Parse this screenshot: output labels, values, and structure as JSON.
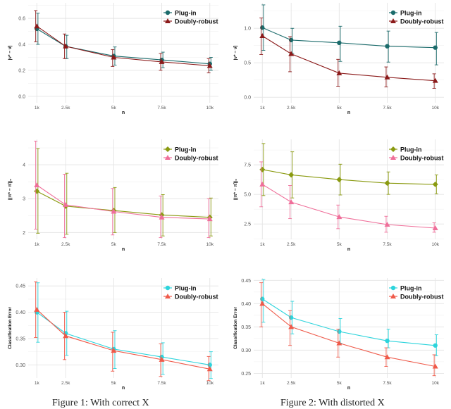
{
  "captions": {
    "left": "Figure 1: With correct X",
    "right": "Figure 2: With distorted X"
  },
  "chart_data": [
    {
      "type": "line",
      "xlabel": "n",
      "ylabel": "|ν* − ν̂|",
      "x": [
        1,
        2.5,
        5,
        7.5,
        10
      ],
      "categories": [
        "1k",
        "2.5k",
        "5k",
        "7.5k",
        "10k"
      ],
      "ylim": [
        -0.05,
        0.72
      ],
      "yticks": [
        0.0,
        0.2,
        0.4,
        0.6
      ],
      "ytick_labels": [
        "0.0",
        "0.2",
        "0.4",
        "0.6"
      ],
      "legend": "top-right",
      "series": [
        {
          "name": "Plug-in",
          "color": "#1b6b6b",
          "marker": "circle",
          "values": [
            0.52,
            0.385,
            0.31,
            0.28,
            0.25
          ],
          "lower": [
            0.4,
            0.29,
            0.24,
            0.22,
            0.2
          ],
          "upper": [
            0.64,
            0.47,
            0.38,
            0.34,
            0.3
          ]
        },
        {
          "name": "Doubly-robust",
          "color": "#8b1a1a",
          "marker": "triangle",
          "values": [
            0.54,
            0.385,
            0.3,
            0.265,
            0.235
          ],
          "lower": [
            0.42,
            0.29,
            0.23,
            0.2,
            0.18
          ],
          "upper": [
            0.66,
            0.48,
            0.36,
            0.33,
            0.29
          ]
        }
      ]
    },
    {
      "type": "line",
      "xlabel": "n",
      "ylabel": "|ν* − ν̂|",
      "x": [
        1,
        2.5,
        5,
        7.5,
        10
      ],
      "categories": [
        "1k",
        "2.5k",
        "5k",
        "7.5k",
        "10k"
      ],
      "ylim": [
        -0.08,
        1.37
      ],
      "yticks": [
        0.0,
        0.5,
        1.0
      ],
      "ytick_labels": [
        "0.0",
        "0.5",
        "1.0"
      ],
      "legend": "top-right",
      "series": [
        {
          "name": "Plug-in",
          "color": "#1b6b6b",
          "marker": "circle",
          "values": [
            1.01,
            0.83,
            0.79,
            0.74,
            0.72
          ],
          "lower": [
            0.68,
            0.64,
            0.52,
            0.51,
            0.47
          ],
          "upper": [
            1.34,
            1.0,
            1.03,
            0.96,
            0.94
          ]
        },
        {
          "name": "Doubly-robust",
          "color": "#8b1a1a",
          "marker": "triangle",
          "values": [
            0.89,
            0.63,
            0.35,
            0.29,
            0.24
          ],
          "lower": [
            0.62,
            0.37,
            0.16,
            0.15,
            0.13
          ],
          "upper": [
            1.15,
            0.88,
            0.55,
            0.44,
            0.34
          ]
        }
      ]
    },
    {
      "type": "line",
      "xlabel": "n",
      "ylabel": "||π* − π̂||₀",
      "x": [
        1,
        2.5,
        5,
        7.5,
        10
      ],
      "categories": [
        "1k",
        "2.5k",
        "5k",
        "7.5k",
        "10k"
      ],
      "ylim": [
        1.8,
        4.75
      ],
      "yticks": [
        2,
        3,
        4
      ],
      "ytick_labels": [
        "2",
        "3",
        "4"
      ],
      "legend": "top-right",
      "series": [
        {
          "name": "Plug-in",
          "color": "#8a9a10",
          "marker": "diamond",
          "values": [
            3.22,
            2.78,
            2.65,
            2.52,
            2.45
          ],
          "lower": [
            1.98,
            1.95,
            2.0,
            1.9,
            1.9
          ],
          "upper": [
            4.48,
            3.75,
            3.33,
            3.12,
            3.02
          ]
        },
        {
          "name": "Doubly-robust",
          "color": "#ef6f9a",
          "marker": "triangle",
          "values": [
            3.4,
            2.82,
            2.62,
            2.45,
            2.4
          ],
          "lower": [
            2.1,
            1.85,
            1.93,
            1.85,
            1.85
          ],
          "upper": [
            4.7,
            3.72,
            3.3,
            3.08,
            3.0
          ]
        }
      ]
    },
    {
      "type": "line",
      "xlabel": "n",
      "ylabel": "||π* − π̂||₀",
      "x": [
        1,
        2.5,
        5,
        7.5,
        10
      ],
      "categories": [
        "1k",
        "2.5k",
        "5k",
        "7.5k",
        "10k"
      ],
      "ylim": [
        1.2,
        9.65
      ],
      "yticks": [
        2.5,
        5.0,
        7.5
      ],
      "ytick_labels": [
        "2.5",
        "5.0",
        "7.5"
      ],
      "legend": "top-right",
      "series": [
        {
          "name": "Plug-in",
          "color": "#8a9a10",
          "marker": "diamond",
          "values": [
            7.1,
            6.65,
            6.25,
            5.95,
            5.85
          ],
          "lower": [
            4.9,
            4.7,
            4.95,
            5.0,
            5.05
          ],
          "upper": [
            9.3,
            8.6,
            7.55,
            6.9,
            6.65
          ]
        },
        {
          "name": "Doubly-robust",
          "color": "#ef6f9a",
          "marker": "triangle",
          "values": [
            5.85,
            4.35,
            3.1,
            2.45,
            2.15
          ],
          "lower": [
            3.95,
            2.95,
            2.1,
            1.8,
            1.8
          ],
          "upper": [
            7.75,
            5.75,
            4.1,
            3.15,
            2.6
          ]
        }
      ]
    },
    {
      "type": "line",
      "xlabel": "n",
      "ylabel": "Classification Error",
      "x": [
        1,
        2.5,
        5,
        7.5,
        10
      ],
      "categories": [
        "1k",
        "2.5k",
        "5k",
        "7.5k",
        "10k"
      ],
      "ylim": [
        0.275,
        0.465
      ],
      "yticks": [
        0.3,
        0.35,
        0.4,
        0.45
      ],
      "ytick_labels": [
        "0.30",
        "0.35",
        "0.40",
        "0.45"
      ],
      "legend": "top-right",
      "series": [
        {
          "name": "Plug-in",
          "color": "#2dd4dc",
          "marker": "circle",
          "values": [
            0.4,
            0.36,
            0.33,
            0.315,
            0.3
          ],
          "lower": [
            0.343,
            0.318,
            0.293,
            0.282,
            0.274
          ],
          "upper": [
            0.456,
            0.402,
            0.365,
            0.342,
            0.325
          ]
        },
        {
          "name": "Doubly-robust",
          "color": "#ef5a4a",
          "marker": "triangle",
          "values": [
            0.405,
            0.355,
            0.327,
            0.31,
            0.292
          ],
          "lower": [
            0.352,
            0.31,
            0.288,
            0.278,
            0.27
          ],
          "upper": [
            0.458,
            0.4,
            0.362,
            0.34,
            0.316
          ]
        }
      ]
    },
    {
      "type": "line",
      "xlabel": "n",
      "ylabel": "Classification Error",
      "x": [
        1,
        2.5,
        5,
        7.5,
        10
      ],
      "categories": [
        "1k",
        "2.5k",
        "5k",
        "7.5k",
        "10k"
      ],
      "ylim": [
        0.24,
        0.455
      ],
      "yticks": [
        0.25,
        0.3,
        0.35,
        0.4,
        0.45
      ],
      "ytick_labels": [
        "0.25",
        "0.30",
        "0.35",
        "0.40",
        "0.45"
      ],
      "legend": "top-right",
      "series": [
        {
          "name": "Plug-in",
          "color": "#2dd4dc",
          "marker": "circle",
          "values": [
            0.41,
            0.37,
            0.34,
            0.32,
            0.31
          ],
          "lower": [
            0.36,
            0.335,
            0.315,
            0.305,
            0.288
          ],
          "upper": [
            0.452,
            0.405,
            0.368,
            0.345,
            0.333
          ]
        },
        {
          "name": "Doubly-robust",
          "color": "#ef5a4a",
          "marker": "triangle",
          "values": [
            0.4,
            0.35,
            0.315,
            0.285,
            0.265
          ],
          "lower": [
            0.35,
            0.31,
            0.285,
            0.265,
            0.245
          ],
          "upper": [
            0.445,
            0.385,
            0.345,
            0.305,
            0.29
          ]
        }
      ]
    }
  ]
}
